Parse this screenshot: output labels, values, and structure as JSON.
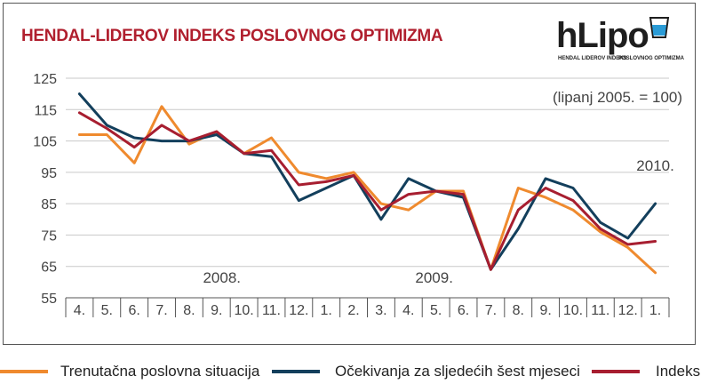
{
  "header": {
    "title": "HENDAL-LIDEROV INDEKS POSLOVNOG OPTIMIZMA",
    "note": "(lipanj 2005. = 100)"
  },
  "logo": {
    "word": "hLipo",
    "tag_left": "HENDAL LIDEROV INDEKS",
    "tag_right": "POSLOVNOG OPTIMIZMA"
  },
  "colors": {
    "situation": "#ef8a2e",
    "expectations": "#133f5c",
    "index": "#a71e30",
    "title": "#b01f2e"
  },
  "chart_data": {
    "type": "line",
    "title": "HENDAL-LIDEROV INDEKS POSLOVNOG OPTIMIZMA",
    "subtitle": "(lipanj 2005. = 100)",
    "ylim": [
      55,
      125
    ],
    "yticks": [
      55,
      65,
      75,
      85,
      95,
      105,
      115,
      125
    ],
    "grid": true,
    "legend_position": "bottom",
    "x": [
      "4.",
      "5.",
      "6.",
      "7.",
      "8.",
      "9.",
      "10.",
      "11.",
      "12.",
      "1.",
      "2.",
      "3.",
      "4.",
      "5.",
      "6.",
      "7.",
      "8.",
      "9.",
      "10.",
      "11.",
      "12.",
      "1."
    ],
    "year_labels": [
      {
        "label": "2008.",
        "at_index": 5
      },
      {
        "label": "2009.",
        "at_index": 13
      },
      {
        "label": "2010.",
        "at_index": 21
      }
    ],
    "series": [
      {
        "name": "Trenutačna poslovna situacija",
        "color_key": "situation",
        "values": [
          107,
          107,
          98,
          116,
          104,
          108,
          101,
          106,
          95,
          93,
          95,
          85,
          83,
          89,
          89,
          64,
          90,
          87,
          83,
          76,
          71,
          63
        ]
      },
      {
        "name": "Očekivanja za sljedećih šest mjeseci",
        "color_key": "expectations",
        "values": [
          120,
          110,
          106,
          105,
          105,
          107,
          101,
          100,
          86,
          90,
          94,
          80,
          93,
          89,
          87,
          64,
          77,
          93,
          90,
          79,
          74,
          85
        ]
      },
      {
        "name": "Indeks",
        "color_key": "index",
        "values": [
          114,
          109,
          103,
          110,
          105,
          108,
          101,
          102,
          91,
          92,
          94,
          83,
          88,
          89,
          88,
          64,
          83,
          90,
          86,
          77,
          72,
          73
        ]
      }
    ]
  }
}
